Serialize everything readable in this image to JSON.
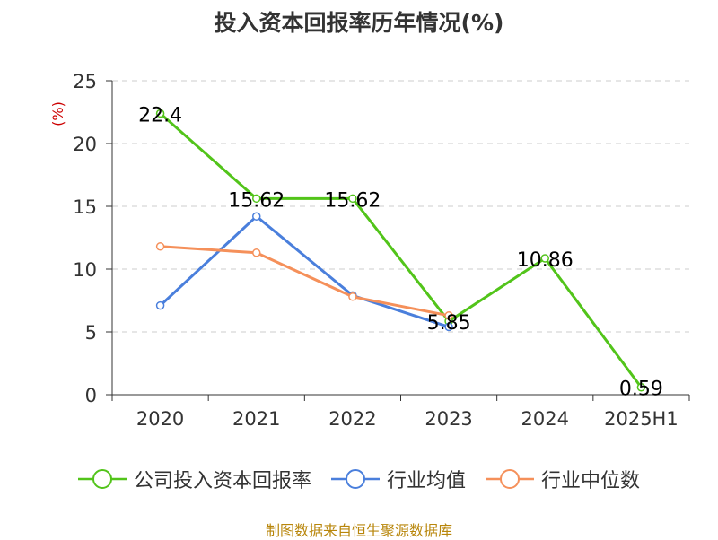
{
  "chart_data": {
    "type": "line",
    "title": "投入资本回报率历年情况(%)",
    "ylabel": "(%)",
    "xlabel": "",
    "categories": [
      "2020",
      "2021",
      "2022",
      "2023",
      "2024",
      "2025H1"
    ],
    "ylim": [
      0,
      25
    ],
    "yticks": [
      0,
      5,
      10,
      15,
      20,
      25
    ],
    "grid": true,
    "legend_position": "bottom",
    "series": [
      {
        "name": "公司投入资本回报率",
        "color": "#52c41a",
        "values": [
          22.4,
          15.62,
          15.62,
          5.85,
          10.86,
          0.59
        ],
        "labels": [
          "22.4",
          "15.62",
          "15.62",
          "5.85",
          "10.86",
          "0.59"
        ]
      },
      {
        "name": "行业均值",
        "color": "#4a7fdc",
        "values": [
          7.1,
          14.2,
          7.9,
          5.4,
          null,
          null
        ]
      },
      {
        "name": "行业中位数",
        "color": "#f5905a",
        "values": [
          11.8,
          11.3,
          7.8,
          6.3,
          null,
          null
        ]
      }
    ],
    "source": "制图数据来自恒生聚源数据库"
  }
}
